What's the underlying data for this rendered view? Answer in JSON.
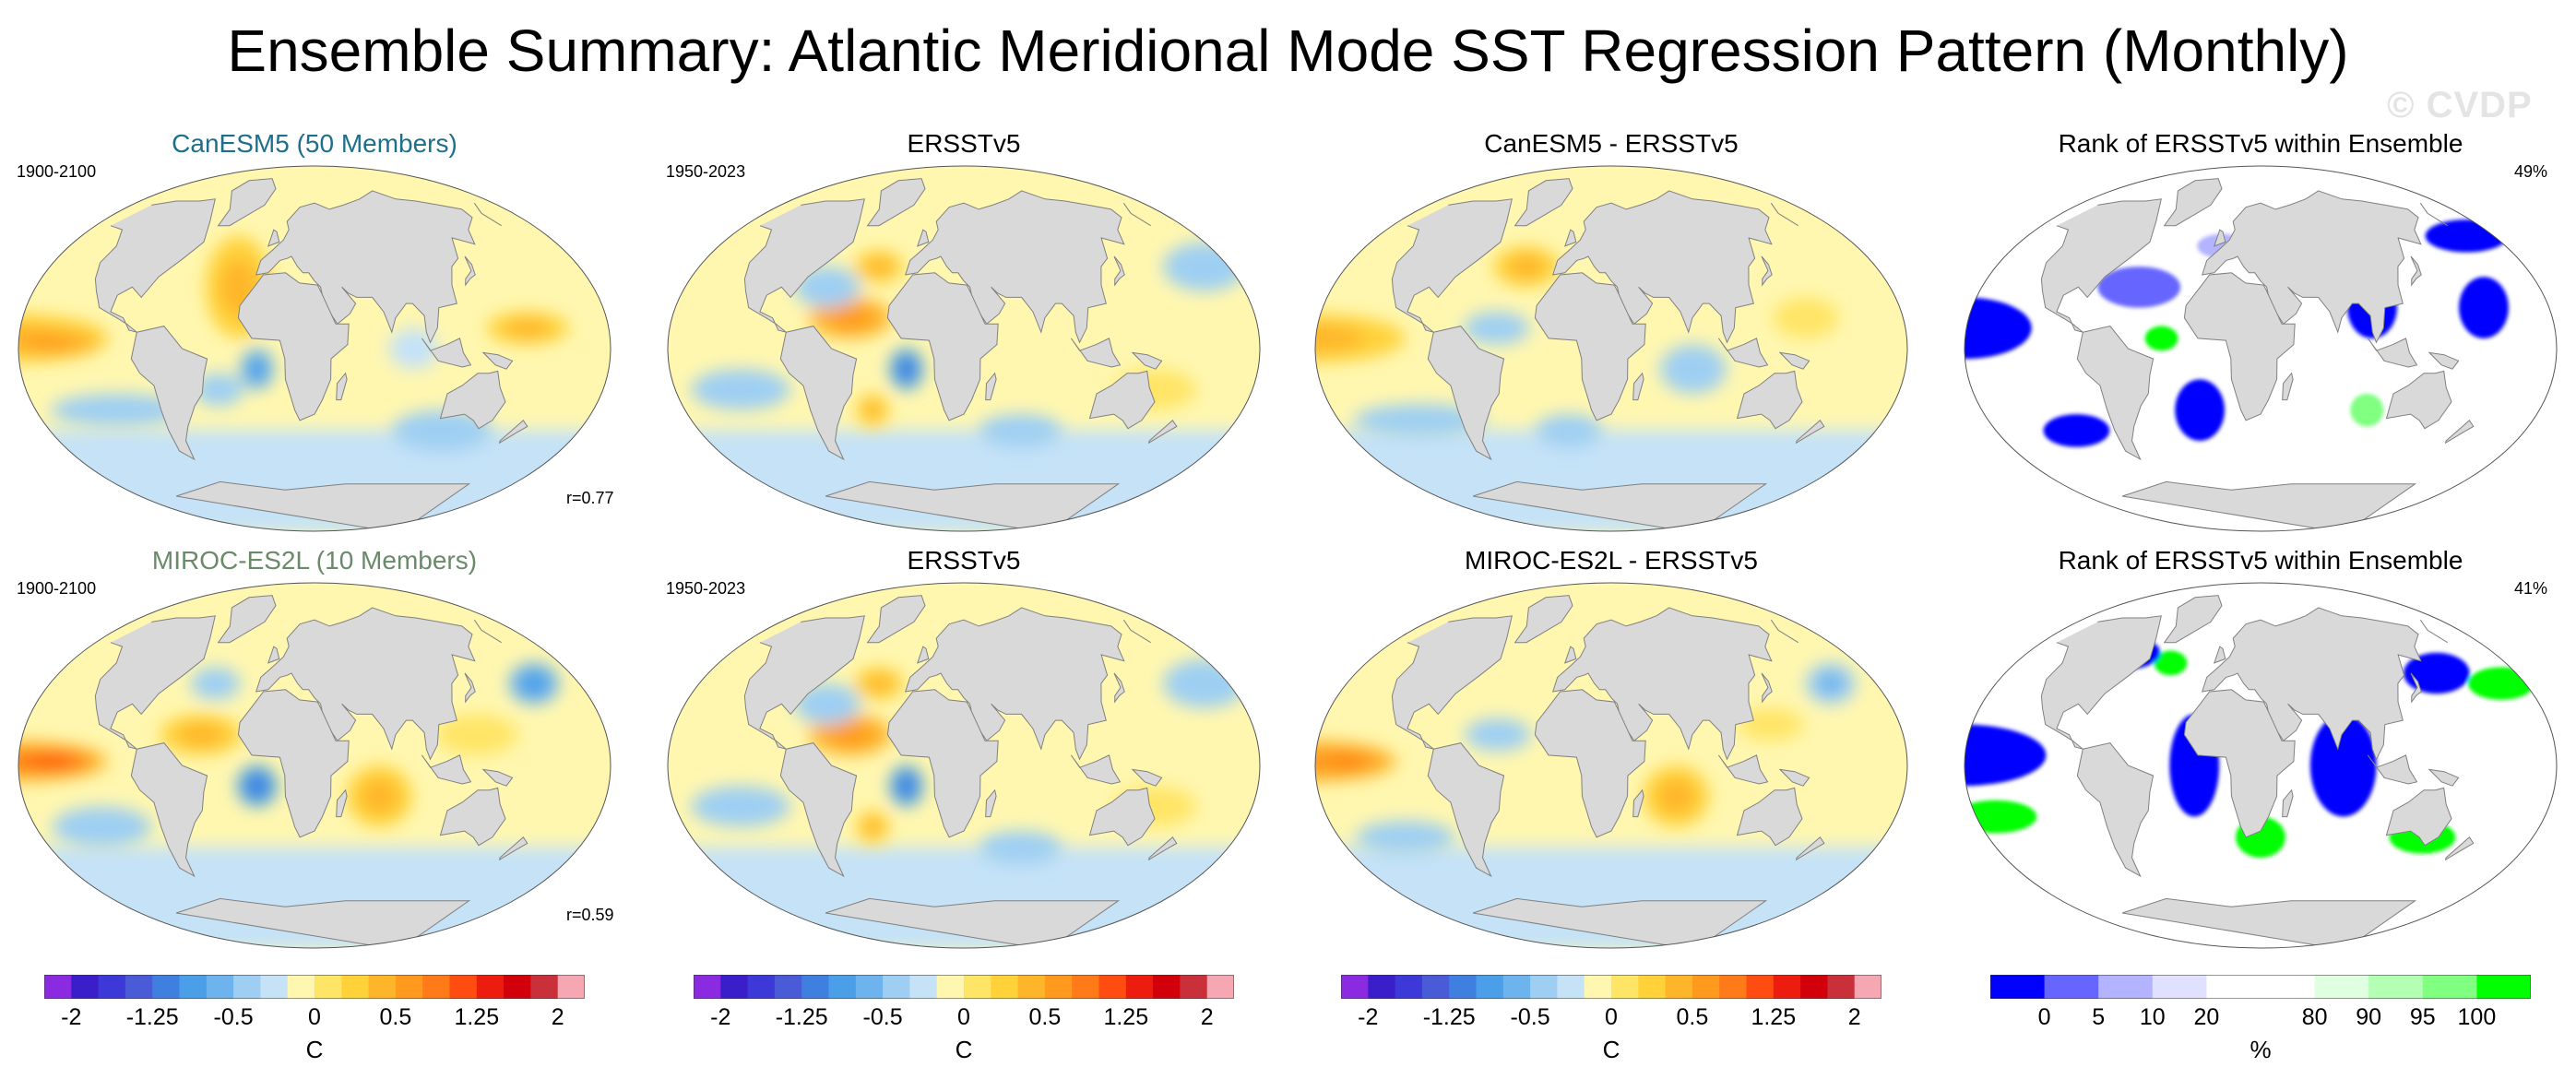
{
  "title": "Ensemble Summary: Atlantic Meridional Mode SST Regression Pattern (Monthly)",
  "watermark": "© CVDP",
  "colors": {
    "land": "#d9d9d9",
    "coast": "#808080",
    "model1_title": "#1f6e8c",
    "model2_title": "#6a8a6a",
    "sst_scale": [
      "#8a2be2",
      "#3a1ec9",
      "#3d38d8",
      "#4a5bd8",
      "#3f7fe0",
      "#4a9fe8",
      "#6db3ee",
      "#9ecff3",
      "#c5e2f7",
      "#fff7b0",
      "#ffe566",
      "#ffd23a",
      "#ffb52a",
      "#ff9a1f",
      "#ff7a18",
      "#ff4c10",
      "#ec1c0f",
      "#d1000b",
      "#c9303a",
      "#f5a8b2"
    ],
    "rank_scale": [
      "#0000ff",
      "#6666ff",
      "#b3b3ff",
      "#e0e0ff",
      "#ffffff",
      "#ffffff",
      "#e0ffe0",
      "#b3ffb3",
      "#80ff80",
      "#00ff00"
    ]
  },
  "chart_data": [
    {
      "type": "heatmap",
      "row": 1,
      "col": 1,
      "title": "CanESM5 (50 Members)",
      "left_label": "1900-2100",
      "right_label": "",
      "bottom_label": "r=0.77",
      "style": "sst_model1",
      "patterns": [
        {
          "lon": -150,
          "lat": 5,
          "rx": 55,
          "ry": 12,
          "value": 0.5
        },
        {
          "lon": -130,
          "lat": 3,
          "rx": 30,
          "ry": 6,
          "value": 0.9
        },
        {
          "lon": -20,
          "lat": 30,
          "rx": 20,
          "ry": 25,
          "value": 0.5
        },
        {
          "lon": -5,
          "lat": -10,
          "rx": 10,
          "ry": 10,
          "value": -0.7
        },
        {
          "lon": -30,
          "lat": -20,
          "rx": 15,
          "ry": 8,
          "value": -0.4
        },
        {
          "lon": 160,
          "lat": 10,
          "rx": 25,
          "ry": 8,
          "value": 0.5
        },
        {
          "lon": 120,
          "lat": -40,
          "rx": 30,
          "ry": 10,
          "value": -0.3
        },
        {
          "lon": -100,
          "lat": -30,
          "rx": 40,
          "ry": 8,
          "value": -0.3
        },
        {
          "lon": 90,
          "lat": 0,
          "rx": 15,
          "ry": 10,
          "value": -0.2
        }
      ]
    },
    {
      "type": "heatmap",
      "row": 1,
      "col": 2,
      "title": "ERSSTv5",
      "left_label": "1950-2023",
      "right_label": "",
      "bottom_label": "",
      "style": "sst_obs",
      "patterns": [
        {
          "lon": -40,
          "lat": 15,
          "rx": 25,
          "ry": 10,
          "value": 0.9
        },
        {
          "lon": -30,
          "lat": 40,
          "rx": 15,
          "ry": 8,
          "value": 0.5
        },
        {
          "lon": -60,
          "lat": 30,
          "rx": 20,
          "ry": 10,
          "value": -0.4
        },
        {
          "lon": -5,
          "lat": -10,
          "rx": 10,
          "ry": 10,
          "value": -0.8
        },
        {
          "lon": -30,
          "lat": -30,
          "rx": 10,
          "ry": 8,
          "value": 0.5
        },
        {
          "lon": -160,
          "lat": 40,
          "rx": 25,
          "ry": 12,
          "value": -0.4
        },
        {
          "lon": -110,
          "lat": -20,
          "rx": 30,
          "ry": 10,
          "value": -0.3
        },
        {
          "lon": 150,
          "lat": -20,
          "rx": 25,
          "ry": 10,
          "value": 0.3
        },
        {
          "lon": 70,
          "lat": -40,
          "rx": 25,
          "ry": 8,
          "value": -0.3
        }
      ]
    },
    {
      "type": "heatmap",
      "row": 1,
      "col": 3,
      "title": "CanESM5 - ERSSTv5",
      "left_label": "",
      "right_label": "",
      "bottom_label": "",
      "style": "sst_diff1",
      "patterns": [
        {
          "lon": -150,
          "lat": 5,
          "rx": 55,
          "ry": 12,
          "value": 0.5
        },
        {
          "lon": -30,
          "lat": 40,
          "rx": 20,
          "ry": 10,
          "value": 0.5
        },
        {
          "lon": -40,
          "lat": 10,
          "rx": 20,
          "ry": 8,
          "value": -0.4
        },
        {
          "lon": 80,
          "lat": -10,
          "rx": 20,
          "ry": 12,
          "value": -0.3
        },
        {
          "lon": 150,
          "lat": 15,
          "rx": 20,
          "ry": 10,
          "value": 0.4
        },
        {
          "lon": -100,
          "lat": -35,
          "rx": 40,
          "ry": 8,
          "value": -0.3
        },
        {
          "lon": 0,
          "lat": -40,
          "rx": 20,
          "ry": 8,
          "value": -0.3
        }
      ]
    },
    {
      "type": "heatmap",
      "row": 1,
      "col": 4,
      "title": "Rank of ERSSTv5 within Ensemble",
      "left_label": "",
      "right_label": "49%",
      "bottom_label": "",
      "style": "rank1",
      "patterns": [
        {
          "lon": -150,
          "lat": 10,
          "rx": 40,
          "ry": 15,
          "value": 0
        },
        {
          "lon": -160,
          "lat": 55,
          "rx": 25,
          "ry": 8,
          "value": 0
        },
        {
          "lon": -50,
          "lat": 30,
          "rx": 25,
          "ry": 10,
          "value": 5
        },
        {
          "lon": -10,
          "lat": -30,
          "rx": 15,
          "ry": 15,
          "value": 0
        },
        {
          "lon": 100,
          "lat": 20,
          "rx": 15,
          "ry": 15,
          "value": 0
        },
        {
          "lon": 170,
          "lat": 20,
          "rx": 15,
          "ry": 15,
          "value": 0
        },
        {
          "lon": -100,
          "lat": -40,
          "rx": 20,
          "ry": 8,
          "value": 0
        },
        {
          "lon": -30,
          "lat": 5,
          "rx": 10,
          "ry": 6,
          "value": 100
        },
        {
          "lon": 100,
          "lat": -30,
          "rx": 10,
          "ry": 8,
          "value": 95
        },
        {
          "lon": 0,
          "lat": 50,
          "rx": 15,
          "ry": 6,
          "value": 10
        }
      ]
    },
    {
      "type": "heatmap",
      "row": 2,
      "col": 1,
      "title": "MIROC-ES2L (10 Members)",
      "left_label": "1900-2100",
      "right_label": "",
      "bottom_label": "r=0.59",
      "style": "sst_model2",
      "patterns": [
        {
          "lon": -150,
          "lat": 2,
          "rx": 55,
          "ry": 10,
          "value": 0.9
        },
        {
          "lon": -130,
          "lat": 2,
          "rx": 25,
          "ry": 5,
          "value": 1.3
        },
        {
          "lon": -40,
          "lat": 15,
          "rx": 25,
          "ry": 10,
          "value": 0.7
        },
        {
          "lon": -5,
          "lat": -10,
          "rx": 12,
          "ry": 10,
          "value": -0.8
        },
        {
          "lon": -175,
          "lat": 40,
          "rx": 15,
          "ry": 10,
          "value": -0.7
        },
        {
          "lon": 70,
          "lat": -15,
          "rx": 20,
          "ry": 15,
          "value": 0.6
        },
        {
          "lon": 130,
          "lat": 15,
          "rx": 25,
          "ry": 10,
          "value": 0.4
        },
        {
          "lon": -110,
          "lat": -30,
          "rx": 30,
          "ry": 10,
          "value": -0.3
        },
        {
          "lon": -40,
          "lat": 40,
          "rx": 15,
          "ry": 8,
          "value": -0.3
        }
      ]
    },
    {
      "type": "heatmap",
      "row": 2,
      "col": 2,
      "title": "ERSSTv5",
      "left_label": "1950-2023",
      "right_label": "",
      "bottom_label": "",
      "style": "sst_obs",
      "patterns": [
        {
          "lon": -40,
          "lat": 15,
          "rx": 25,
          "ry": 10,
          "value": 0.9
        },
        {
          "lon": -30,
          "lat": 40,
          "rx": 15,
          "ry": 8,
          "value": 0.5
        },
        {
          "lon": -60,
          "lat": 30,
          "rx": 20,
          "ry": 10,
          "value": -0.4
        },
        {
          "lon": -5,
          "lat": -10,
          "rx": 10,
          "ry": 10,
          "value": -0.8
        },
        {
          "lon": -30,
          "lat": -30,
          "rx": 10,
          "ry": 8,
          "value": 0.5
        },
        {
          "lon": -160,
          "lat": 40,
          "rx": 25,
          "ry": 12,
          "value": -0.4
        },
        {
          "lon": -110,
          "lat": -20,
          "rx": 30,
          "ry": 10,
          "value": -0.3
        },
        {
          "lon": 150,
          "lat": -20,
          "rx": 25,
          "ry": 10,
          "value": 0.3
        },
        {
          "lon": 70,
          "lat": -40,
          "rx": 25,
          "ry": 8,
          "value": -0.3
        }
      ]
    },
    {
      "type": "heatmap",
      "row": 2,
      "col": 3,
      "title": "MIROC-ES2L - ERSSTv5",
      "left_label": "",
      "right_label": "",
      "bottom_label": "",
      "style": "sst_diff2",
      "patterns": [
        {
          "lon": -150,
          "lat": 2,
          "rx": 50,
          "ry": 10,
          "value": 0.8
        },
        {
          "lon": -130,
          "lat": 2,
          "rx": 20,
          "ry": 5,
          "value": 1.2
        },
        {
          "lon": 70,
          "lat": -15,
          "rx": 20,
          "ry": 15,
          "value": 0.6
        },
        {
          "lon": -40,
          "lat": 15,
          "rx": 20,
          "ry": 8,
          "value": -0.4
        },
        {
          "lon": -175,
          "lat": 40,
          "rx": 15,
          "ry": 10,
          "value": -0.5
        },
        {
          "lon": 130,
          "lat": 20,
          "rx": 20,
          "ry": 8,
          "value": 0.4
        },
        {
          "lon": -110,
          "lat": -35,
          "rx": 30,
          "ry": 8,
          "value": -0.3
        }
      ]
    },
    {
      "type": "heatmap",
      "row": 2,
      "col": 4,
      "title": "Rank of ERSSTv5 within Ensemble",
      "left_label": "",
      "right_label": "41%",
      "bottom_label": "",
      "style": "rank2",
      "patterns": [
        {
          "lon": -150,
          "lat": 5,
          "rx": 50,
          "ry": 15,
          "value": 0
        },
        {
          "lon": -10,
          "lat": 0,
          "rx": 15,
          "ry": 25,
          "value": 0
        },
        {
          "lon": 80,
          "lat": 0,
          "rx": 20,
          "ry": 25,
          "value": 0
        },
        {
          "lon": 160,
          "lat": 45,
          "rx": 20,
          "ry": 10,
          "value": 0
        },
        {
          "lon": -160,
          "lat": 40,
          "rx": 20,
          "ry": 8,
          "value": 100
        },
        {
          "lon": -140,
          "lat": -25,
          "rx": 25,
          "ry": 8,
          "value": 100
        },
        {
          "lon": -40,
          "lat": 50,
          "rx": 10,
          "ry": 6,
          "value": 100
        },
        {
          "lon": 30,
          "lat": -35,
          "rx": 15,
          "ry": 10,
          "value": 100
        },
        {
          "lon": 140,
          "lat": -35,
          "rx": 20,
          "ry": 8,
          "value": 100
        },
        {
          "lon": -80,
          "lat": 55,
          "rx": 20,
          "ry": 8,
          "value": 0
        }
      ]
    }
  ],
  "colorbars": [
    {
      "type": "sst",
      "unit": "C",
      "ticks": [
        "-2",
        "-1.25",
        "-0.5",
        "0",
        "0.5",
        "1.25",
        "2"
      ],
      "tick_positions": [
        1,
        4,
        7,
        10,
        13,
        16,
        19
      ],
      "levels": 20
    },
    {
      "type": "sst",
      "unit": "C",
      "ticks": [
        "-2",
        "-1.25",
        "-0.5",
        "0",
        "0.5",
        "1.25",
        "2"
      ],
      "tick_positions": [
        1,
        4,
        7,
        10,
        13,
        16,
        19
      ],
      "levels": 20
    },
    {
      "type": "sst",
      "unit": "C",
      "ticks": [
        "-2",
        "-1.25",
        "-0.5",
        "0",
        "0.5",
        "1.25",
        "2"
      ],
      "tick_positions": [
        1,
        4,
        7,
        10,
        13,
        16,
        19
      ],
      "levels": 20
    },
    {
      "type": "rank",
      "unit": "%",
      "ticks": [
        "0",
        "5",
        "10",
        "20",
        "80",
        "90",
        "95",
        "100"
      ],
      "tick_positions": [
        1,
        2,
        3,
        4,
        6,
        7,
        8,
        9
      ],
      "levels": 10
    }
  ]
}
